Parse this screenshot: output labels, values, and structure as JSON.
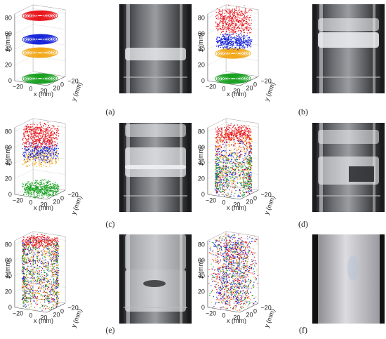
{
  "panels": [
    {
      "id": "a",
      "caption": "(a)",
      "state": "stratified",
      "layers": [
        "red",
        "blue",
        "orange",
        "green"
      ],
      "z_ticks": [
        "0",
        "20",
        "40",
        "60",
        "80"
      ],
      "x_ticks": [
        "−20",
        "0",
        "20"
      ],
      "y_ticks": [
        "20",
        "0",
        "−20"
      ],
      "zlabel": "z (mm)",
      "xlabel": "x (mm)",
      "ylabel": "y (mm)"
    },
    {
      "id": "b",
      "caption": "(b)",
      "state": "early-mixing",
      "layers": [
        "red",
        "blue",
        "orange",
        "green"
      ],
      "z_ticks": [
        "0",
        "20",
        "40",
        "60",
        "80"
      ],
      "x_ticks": [
        "−20",
        "0",
        "20"
      ],
      "y_ticks": [
        "20",
        "0",
        "−20"
      ],
      "zlabel": "z (mm)",
      "xlabel": "x (mm)",
      "ylabel": "y (mm)"
    },
    {
      "id": "c",
      "caption": "(c)",
      "state": "partial-mixing",
      "layers": [
        "red",
        "blue",
        "orange",
        "green"
      ],
      "z_ticks": [
        "0",
        "20",
        "40",
        "60",
        "80"
      ],
      "x_ticks": [
        "−20",
        "0",
        "20"
      ],
      "y_ticks": [
        "20",
        "0",
        "−20"
      ],
      "zlabel": "z (mm)",
      "xlabel": "x (mm)",
      "ylabel": "y (mm)"
    },
    {
      "id": "d",
      "caption": "(d)",
      "state": "mixing",
      "layers": [
        "red",
        "blue",
        "orange",
        "green"
      ],
      "z_ticks": [
        "0",
        "20",
        "40",
        "60",
        "80"
      ],
      "x_ticks": [
        "−20",
        "0",
        "20"
      ],
      "y_ticks": [
        "20",
        "0",
        "−20"
      ],
      "zlabel": "z (mm)",
      "xlabel": "x (mm)",
      "ylabel": "y (mm)"
    },
    {
      "id": "e",
      "caption": "(e)",
      "state": "mostly-mixed",
      "layers": [
        "red",
        "blue",
        "orange",
        "green"
      ],
      "z_ticks": [
        "0",
        "20",
        "40",
        "60",
        "80"
      ],
      "x_ticks": [
        "−20",
        "0",
        "20"
      ],
      "y_ticks": [
        "20",
        "0",
        "−20"
      ],
      "zlabel": "z (mm)",
      "xlabel": "x (mm)",
      "ylabel": "y (mm)"
    },
    {
      "id": "f",
      "caption": "(f)",
      "state": "fully-mixed",
      "layers": [
        "red",
        "blue",
        "orange",
        "green"
      ],
      "z_ticks": [
        "0",
        "20",
        "40",
        "60",
        "80"
      ],
      "x_ticks": [
        "−20",
        "0",
        "20"
      ],
      "y_ticks": [
        "20",
        "0",
        "−20"
      ],
      "zlabel": "z (mm)",
      "xlabel": "x (mm)",
      "ylabel": "y (mm)"
    }
  ],
  "colors": {
    "red": "#e8141b",
    "blue": "#1624d8",
    "orange": "#f2a81a",
    "green": "#18a020"
  }
}
